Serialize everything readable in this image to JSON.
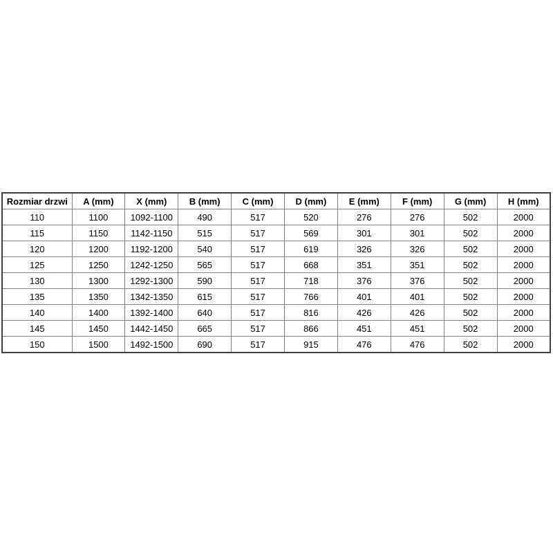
{
  "page": {
    "background_color": "#ffffff",
    "text_color": "#000000",
    "inner_border_color": "#808080",
    "outer_border_color": "#404040"
  },
  "table": {
    "columns": [
      "Rozmiar drzwi",
      "A (mm)",
      "X (mm)",
      "B (mm)",
      "C (mm)",
      "D (mm)",
      "E (mm)",
      "F (mm)",
      "G (mm)",
      "H (mm)"
    ],
    "rows": [
      [
        "110",
        "1100",
        "1092-1100",
        "490",
        "517",
        "520",
        "276",
        "276",
        "502",
        "2000"
      ],
      [
        "115",
        "1150",
        "1142-1150",
        "515",
        "517",
        "569",
        "301",
        "301",
        "502",
        "2000"
      ],
      [
        "120",
        "1200",
        "1192-1200",
        "540",
        "517",
        "619",
        "326",
        "326",
        "502",
        "2000"
      ],
      [
        "125",
        "1250",
        "1242-1250",
        "565",
        "517",
        "668",
        "351",
        "351",
        "502",
        "2000"
      ],
      [
        "130",
        "1300",
        "1292-1300",
        "590",
        "517",
        "718",
        "376",
        "376",
        "502",
        "2000"
      ],
      [
        "135",
        "1350",
        "1342-1350",
        "615",
        "517",
        "766",
        "401",
        "401",
        "502",
        "2000"
      ],
      [
        "140",
        "1400",
        "1392-1400",
        "640",
        "517",
        "816",
        "426",
        "426",
        "502",
        "2000"
      ],
      [
        "145",
        "1450",
        "1442-1450",
        "665",
        "517",
        "866",
        "451",
        "451",
        "502",
        "2000"
      ],
      [
        "150",
        "1500",
        "1492-1500",
        "690",
        "517",
        "915",
        "476",
        "476",
        "502",
        "2000"
      ]
    ]
  }
}
